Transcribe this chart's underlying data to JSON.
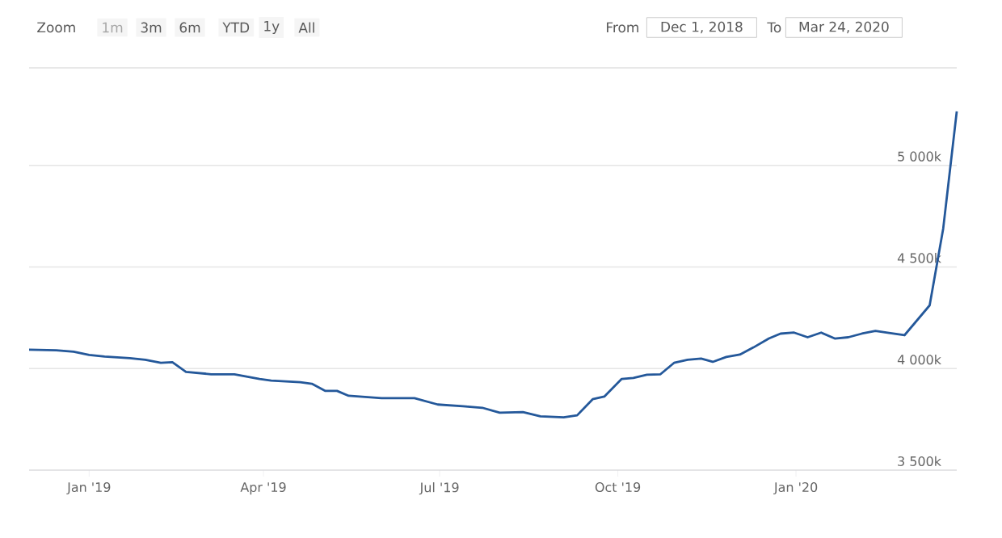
{
  "chart_data": {
    "type": "line",
    "x": [
      "2018-12-01",
      "2018-12-15",
      "2018-12-24",
      "2019-01-01",
      "2019-01-09",
      "2019-01-22",
      "2019-01-30",
      "2019-02-07",
      "2019-02-13",
      "2019-02-20",
      "2019-03-05",
      "2019-03-17",
      "2019-03-30",
      "2019-04-05",
      "2019-04-20",
      "2019-04-26",
      "2019-05-03",
      "2019-05-09",
      "2019-05-15",
      "2019-06-01",
      "2019-06-18",
      "2019-06-30",
      "2019-07-13",
      "2019-07-23",
      "2019-08-01",
      "2019-08-13",
      "2019-08-22",
      "2019-09-03",
      "2019-09-10",
      "2019-09-18",
      "2019-09-24",
      "2019-10-03",
      "2019-10-09",
      "2019-10-16",
      "2019-10-23",
      "2019-10-30",
      "2019-11-06",
      "2019-11-13",
      "2019-11-19",
      "2019-11-26",
      "2019-12-03",
      "2019-12-10",
      "2019-12-18",
      "2019-12-24",
      "2019-12-31",
      "2020-01-07",
      "2020-01-14",
      "2020-01-21",
      "2020-01-28",
      "2020-02-04",
      "2020-02-11",
      "2020-02-18",
      "2020-02-26",
      "2020-03-10",
      "2020-03-17",
      "2020-03-24"
    ],
    "series": [
      {
        "color": "#24589a",
        "values": [
          4093,
          4090,
          4083,
          4067,
          4059,
          4051,
          4043,
          4028,
          4031,
          3984,
          3972,
          3972,
          3949,
          3941,
          3933,
          3925,
          3890,
          3890,
          3866,
          3854,
          3854,
          3823,
          3815,
          3807,
          3783,
          3786,
          3765,
          3760,
          3770,
          3849,
          3862,
          3949,
          3954,
          3970,
          3972,
          4028,
          4043,
          4049,
          4033,
          4057,
          4069,
          4104,
          4148,
          4172,
          4177,
          4154,
          4177,
          4148,
          4154,
          4172,
          4185,
          4175,
          4164,
          4311,
          4689,
          5266
        ]
      }
    ],
    "xlim": [
      "2018-12-01",
      "2020-03-24"
    ],
    "xticks": [
      {
        "value": "2019-01-01",
        "label": "Jan '19"
      },
      {
        "value": "2019-04-01",
        "label": "Apr '19"
      },
      {
        "value": "2019-07-01",
        "label": "Jul '19"
      },
      {
        "value": "2019-10-01",
        "label": "Oct '19"
      },
      {
        "value": "2020-01-01",
        "label": "Jan '20"
      }
    ],
    "ylim": [
      3500,
      5480
    ],
    "yticks": [
      {
        "value": 3500,
        "label": "3 500k"
      },
      {
        "value": 4000,
        "label": "4 000k"
      },
      {
        "value": 4500,
        "label": "4 500k"
      },
      {
        "value": 5000,
        "label": "5 000k"
      }
    ],
    "grid": "y",
    "annotations": [
      "Zoom",
      "1m",
      "3m",
      "6m",
      "YTD",
      "1y",
      "All",
      "From",
      "Dec 1, 2018",
      "To",
      "Mar 24, 2020"
    ]
  }
}
